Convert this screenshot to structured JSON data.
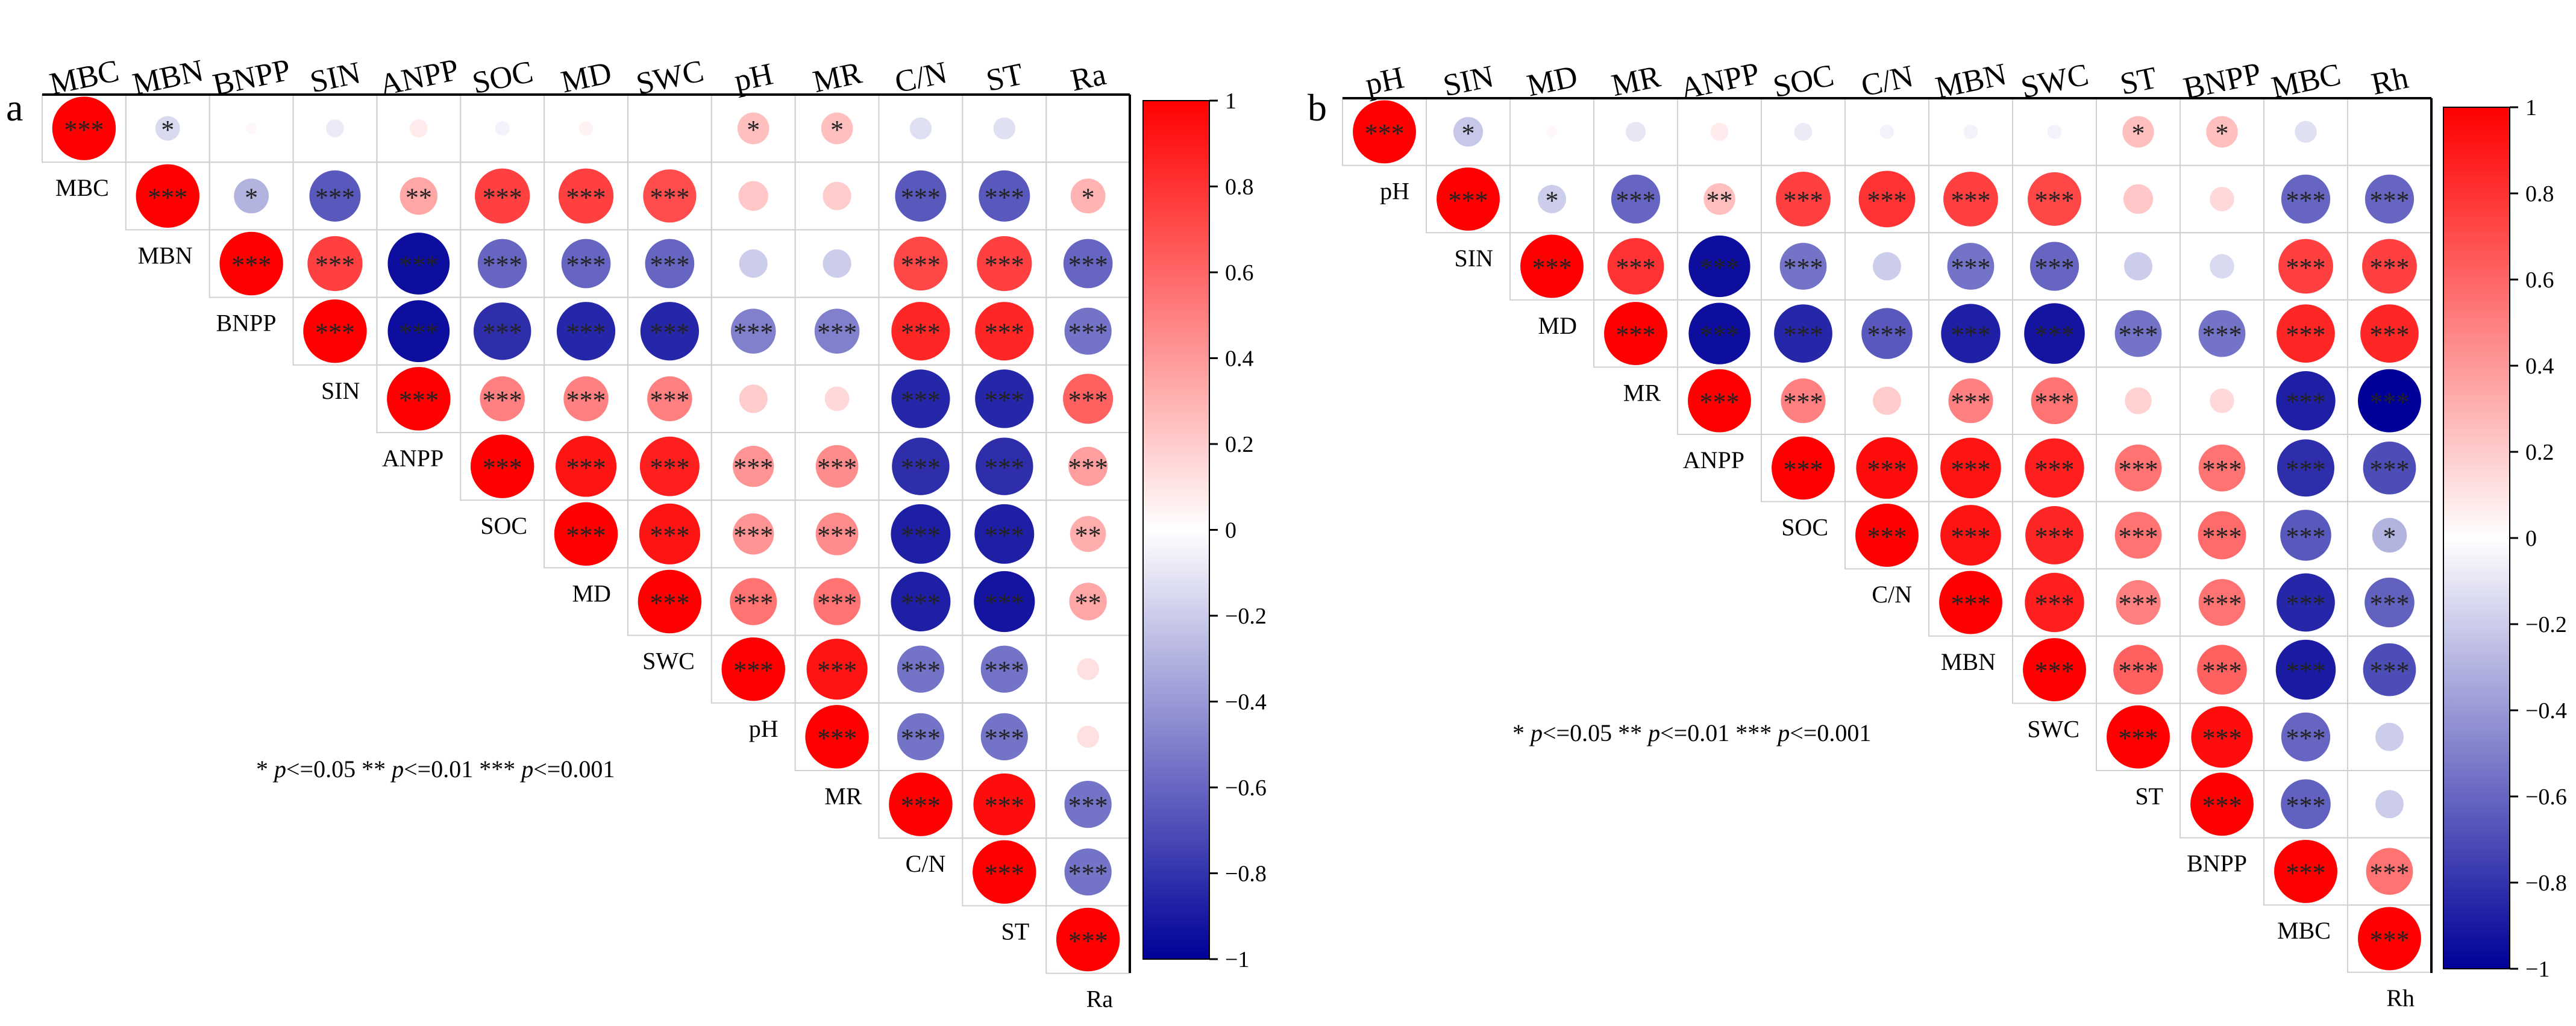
{
  "chart_data": [
    {
      "type": "heatmap",
      "subtype": "upper-triangle correlogram (circles)",
      "panel_label": "a",
      "variables": [
        "MBC",
        "MBN",
        "BNPP",
        "SIN",
        "ANPP",
        "SOC",
        "MD",
        "SWC",
        "pH",
        "MR",
        "C/N",
        "ST",
        "Ra"
      ],
      "matrix": [
        [
          1,
          -0.15,
          0.03,
          -0.08,
          0.08,
          -0.05,
          0.05,
          0,
          0.25,
          0.25,
          -0.12,
          -0.12,
          0
        ],
        [
          null,
          1,
          -0.3,
          -0.65,
          0.35,
          0.75,
          0.75,
          0.7,
          0.22,
          0.2,
          -0.65,
          -0.65,
          0.3
        ],
        [
          null,
          null,
          1,
          0.75,
          -0.95,
          -0.6,
          -0.6,
          -0.6,
          -0.2,
          -0.2,
          0.72,
          0.75,
          -0.6
        ],
        [
          null,
          null,
          null,
          1,
          -0.95,
          -0.82,
          -0.85,
          -0.85,
          -0.5,
          -0.5,
          0.85,
          0.85,
          -0.55
        ],
        [
          null,
          null,
          null,
          null,
          1,
          0.5,
          0.5,
          0.5,
          0.2,
          0.15,
          -0.85,
          -0.85,
          0.62
        ],
        [
          null,
          null,
          null,
          null,
          null,
          1,
          0.92,
          0.88,
          0.42,
          0.45,
          -0.82,
          -0.82,
          0.38
        ],
        [
          null,
          null,
          null,
          null,
          null,
          null,
          1,
          0.92,
          0.42,
          0.45,
          -0.88,
          -0.88,
          0.32
        ],
        [
          null,
          null,
          null,
          null,
          null,
          null,
          null,
          1,
          0.55,
          0.55,
          -0.88,
          -0.92,
          0.35
        ],
        [
          null,
          null,
          null,
          null,
          null,
          null,
          null,
          null,
          1,
          0.92,
          -0.55,
          -0.55,
          0.12
        ],
        [
          null,
          null,
          null,
          null,
          null,
          null,
          null,
          null,
          null,
          1,
          -0.55,
          -0.55,
          0.12
        ],
        [
          null,
          null,
          null,
          null,
          null,
          null,
          null,
          null,
          null,
          null,
          1,
          0.95,
          -0.55
        ],
        [
          null,
          null,
          null,
          null,
          null,
          null,
          null,
          null,
          null,
          null,
          null,
          1,
          -0.55
        ],
        [
          null,
          null,
          null,
          null,
          null,
          null,
          null,
          null,
          null,
          null,
          null,
          null,
          1
        ]
      ],
      "significance": [
        [
          "***",
          "*",
          "",
          "",
          "",
          "",
          "",
          "",
          "*",
          "*",
          "",
          "",
          ""
        ],
        [
          null,
          "***",
          "*",
          "***",
          "**",
          "***",
          "***",
          "***",
          "",
          "",
          "***",
          "***",
          "*"
        ],
        [
          null,
          null,
          "***",
          "***",
          "***",
          "***",
          "***",
          "***",
          "",
          "",
          "***",
          "***",
          "***"
        ],
        [
          null,
          null,
          null,
          "***",
          "***",
          "***",
          "***",
          "***",
          "***",
          "***",
          "***",
          "***",
          "***"
        ],
        [
          null,
          null,
          null,
          null,
          "***",
          "***",
          "***",
          "***",
          "",
          "",
          "***",
          "***",
          "***"
        ],
        [
          null,
          null,
          null,
          null,
          null,
          "***",
          "***",
          "***",
          "***",
          "***",
          "***",
          "***",
          "***"
        ],
        [
          null,
          null,
          null,
          null,
          null,
          null,
          "***",
          "***",
          "***",
          "***",
          "***",
          "***",
          "**"
        ],
        [
          null,
          null,
          null,
          null,
          null,
          null,
          null,
          "***",
          "***",
          "***",
          "***",
          "***",
          "**"
        ],
        [
          null,
          null,
          null,
          null,
          null,
          null,
          null,
          null,
          "***",
          "***",
          "***",
          "***",
          ""
        ],
        [
          null,
          null,
          null,
          null,
          null,
          null,
          null,
          null,
          null,
          "***",
          "***",
          "***",
          ""
        ],
        [
          null,
          null,
          null,
          null,
          null,
          null,
          null,
          null,
          null,
          null,
          "***",
          "***",
          "***"
        ],
        [
          null,
          null,
          null,
          null,
          null,
          null,
          null,
          null,
          null,
          null,
          null,
          "***",
          "***"
        ],
        [
          null,
          null,
          null,
          null,
          null,
          null,
          null,
          null,
          null,
          null,
          null,
          null,
          "***"
        ]
      ],
      "legend_text": {
        "s1": "* ",
        "p1": "p",
        "r1": "<=0.05  ** ",
        "p2": "p",
        "r2": "<=0.01  *** ",
        "p3": "p",
        "r3": "<=0.001"
      },
      "colorbar": {
        "range": [
          -1,
          1
        ],
        "ticks": [
          1,
          0.8,
          0.6,
          0.4,
          0.2,
          0,
          -0.2,
          -0.4,
          -0.6,
          -0.8,
          -1
        ],
        "tick_labels": [
          "1",
          "0.8",
          "0.6",
          "0.4",
          "0.2",
          "0",
          "−0.2",
          "−0.4",
          "−0.6",
          "−0.8",
          "−1"
        ],
        "colors": [
          "#000099",
          "#ffffff",
          "#ff0000"
        ]
      }
    },
    {
      "type": "heatmap",
      "subtype": "upper-triangle correlogram (circles)",
      "panel_label": "b",
      "variables": [
        "pH",
        "SIN",
        "MD",
        "MR",
        "ANPP",
        "SOC",
        "C/N",
        "MBN",
        "SWC",
        "ST",
        "BNPP",
        "MBC",
        "Rh"
      ],
      "matrix": [
        [
          1,
          -0.22,
          0.03,
          -0.1,
          0.08,
          -0.08,
          -0.05,
          -0.05,
          -0.05,
          0.25,
          0.25,
          -0.12,
          0
        ],
        [
          null,
          1,
          -0.2,
          -0.6,
          0.25,
          0.75,
          0.8,
          0.75,
          0.72,
          0.22,
          0.15,
          -0.6,
          -0.6
        ],
        [
          null,
          null,
          1,
          0.8,
          -0.95,
          -0.55,
          -0.2,
          -0.55,
          -0.6,
          -0.2,
          -0.15,
          0.75,
          0.75
        ],
        [
          null,
          null,
          null,
          1,
          -0.95,
          -0.85,
          -0.65,
          -0.88,
          -0.92,
          -0.55,
          -0.55,
          0.85,
          0.85
        ],
        [
          null,
          null,
          null,
          null,
          1,
          0.5,
          0.2,
          0.5,
          0.55,
          0.18,
          0.15,
          -0.88,
          -1
        ],
        [
          null,
          null,
          null,
          null,
          null,
          1,
          0.95,
          0.92,
          0.88,
          0.55,
          0.55,
          -0.82,
          -0.7
        ],
        [
          null,
          null,
          null,
          null,
          null,
          null,
          1,
          0.92,
          0.85,
          0.55,
          0.58,
          -0.65,
          -0.3
        ],
        [
          null,
          null,
          null,
          null,
          null,
          null,
          null,
          1,
          0.88,
          0.5,
          0.55,
          -0.85,
          -0.62
        ],
        [
          null,
          null,
          null,
          null,
          null,
          null,
          null,
          null,
          1,
          0.62,
          0.62,
          -0.9,
          -0.7
        ],
        [
          null,
          null,
          null,
          null,
          null,
          null,
          null,
          null,
          null,
          1,
          0.95,
          -0.6,
          -0.2
        ],
        [
          null,
          null,
          null,
          null,
          null,
          null,
          null,
          null,
          null,
          null,
          1,
          -0.62,
          -0.2
        ],
        [
          null,
          null,
          null,
          null,
          null,
          null,
          null,
          null,
          null,
          null,
          null,
          1,
          0.55
        ],
        [
          null,
          null,
          null,
          null,
          null,
          null,
          null,
          null,
          null,
          null,
          null,
          null,
          1
        ]
      ],
      "significance": [
        [
          "***",
          "*",
          "",
          "",
          "",
          "",
          "",
          "",
          "",
          "*",
          "*",
          "",
          ""
        ],
        [
          null,
          "***",
          "*",
          "***",
          "**",
          "***",
          "***",
          "***",
          "***",
          "",
          "",
          "***",
          "***"
        ],
        [
          null,
          null,
          "***",
          "***",
          "***",
          "***",
          "",
          "***",
          "***",
          "",
          "",
          "***",
          "***"
        ],
        [
          null,
          null,
          null,
          "***",
          "***",
          "***",
          "***",
          "***",
          "***",
          "***",
          "***",
          "***",
          "***"
        ],
        [
          null,
          null,
          null,
          null,
          "***",
          "***",
          "",
          "***",
          "***",
          "",
          "",
          "***",
          "***"
        ],
        [
          null,
          null,
          null,
          null,
          null,
          "***",
          "***",
          "***",
          "***",
          "***",
          "***",
          "***",
          "***"
        ],
        [
          null,
          null,
          null,
          null,
          null,
          null,
          "***",
          "***",
          "***",
          "***",
          "***",
          "***",
          "*"
        ],
        [
          null,
          null,
          null,
          null,
          null,
          null,
          null,
          "***",
          "***",
          "***",
          "***",
          "***",
          "***"
        ],
        [
          null,
          null,
          null,
          null,
          null,
          null,
          null,
          null,
          "***",
          "***",
          "***",
          "***",
          "***"
        ],
        [
          null,
          null,
          null,
          null,
          null,
          null,
          null,
          null,
          null,
          "***",
          "***",
          "***",
          ""
        ],
        [
          null,
          null,
          null,
          null,
          null,
          null,
          null,
          null,
          null,
          null,
          "***",
          "***",
          ""
        ],
        [
          null,
          null,
          null,
          null,
          null,
          null,
          null,
          null,
          null,
          null,
          null,
          "***",
          "***"
        ],
        [
          null,
          null,
          null,
          null,
          null,
          null,
          null,
          null,
          null,
          null,
          null,
          null,
          "***"
        ]
      ],
      "legend_text": {
        "s1": "* ",
        "p1": "p",
        "r1": "<=0.05  ** ",
        "p2": "p",
        "r2": "<=0.01  *** ",
        "p3": "p",
        "r3": "<=0.001"
      },
      "colorbar": {
        "range": [
          -1,
          1
        ],
        "ticks": [
          1,
          0.8,
          0.6,
          0.4,
          0.2,
          0,
          -0.2,
          -0.4,
          -0.6,
          -0.8,
          -1
        ],
        "tick_labels": [
          "1",
          "0.8",
          "0.6",
          "0.4",
          "0.2",
          "0",
          "−0.2",
          "−0.4",
          "−0.6",
          "−0.8",
          "−1"
        ],
        "colors": [
          "#000099",
          "#ffffff",
          "#ff0000"
        ]
      }
    }
  ]
}
